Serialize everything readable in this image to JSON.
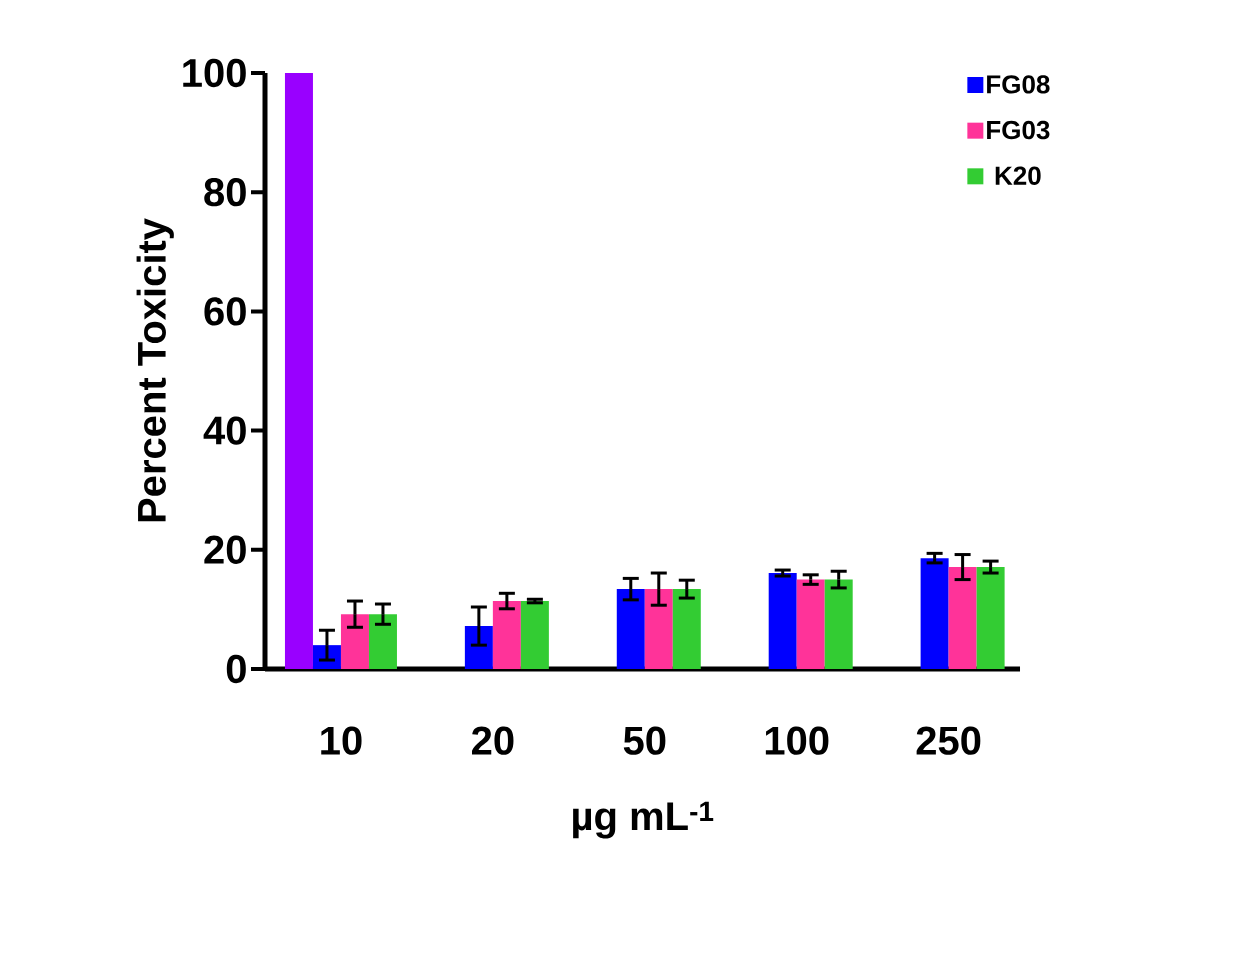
{
  "chart_data": {
    "type": "bar",
    "xlabel": "µg mL$^{-1}$",
    "ylabel": "Percent Toxicity",
    "categories": [
      "10",
      "20",
      "50",
      "100",
      "250"
    ],
    "series": [
      {
        "color": "#9900ff",
        "values": [
          100,
          null,
          null,
          null,
          null
        ]
      },
      {
        "name": "FG08",
        "color": "#0000ff",
        "values": [
          4.0,
          7.2,
          13.4,
          16.1,
          18.6
        ],
        "errors": [
          2.5,
          3.2,
          1.8,
          0.5,
          0.8
        ]
      },
      {
        "name": "FG03",
        "color": "#ff3399",
        "values": [
          9.2,
          11.4,
          13.4,
          15.0,
          17.1
        ],
        "errors": [
          2.2,
          1.3,
          2.7,
          0.8,
          2.1
        ]
      },
      {
        "name": "K20",
        "color": "#33cc33",
        "values": [
          9.2,
          11.4,
          13.4,
          15.0,
          17.1
        ],
        "errors": [
          1.7,
          0.3,
          1.5,
          1.4,
          1.0
        ]
      }
    ],
    "ylim": [
      0,
      100
    ],
    "yticks": [
      0,
      20,
      40,
      60,
      80,
      100
    ],
    "grid": false,
    "legend": "top right"
  }
}
